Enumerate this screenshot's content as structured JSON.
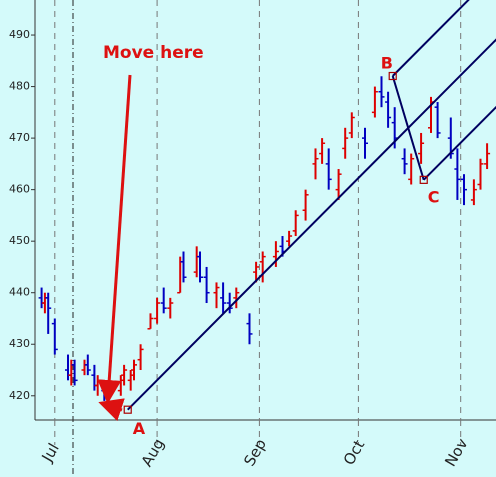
{
  "chart_data": {
    "type": "ohlc",
    "xlim": [
      176,
      315.7
    ],
    "ylim": [
      415.3,
      496.8
    ],
    "xticks": [
      {
        "value": 182,
        "label": "Jul"
      },
      {
        "value": 213,
        "label": "Aug"
      },
      {
        "value": 244,
        "label": "Sep"
      },
      {
        "value": 274,
        "label": "Oct"
      },
      {
        "value": 305,
        "label": "Nov"
      }
    ],
    "yticks": [
      420,
      430,
      440,
      450,
      460,
      470,
      480,
      490
    ],
    "up_color": "#dd0000",
    "down_color": "#0000c0",
    "grid": true,
    "bars": {
      "x": [
        178,
        179,
        180,
        182,
        186,
        187,
        188,
        191,
        192,
        194,
        195,
        197,
        198,
        202,
        203,
        205,
        206,
        208,
        211,
        213,
        215,
        217,
        220,
        221,
        225,
        226,
        228,
        231,
        233,
        235,
        237,
        241,
        243,
        245,
        249,
        251,
        253,
        255,
        258,
        261,
        263,
        265,
        268,
        270,
        272,
        276,
        279,
        281,
        283,
        285,
        288,
        290,
        293,
        296,
        298,
        302,
        304,
        306,
        309,
        311,
        313
      ],
      "open": [
        439,
        438,
        439,
        434,
        425,
        424,
        426,
        425,
        426,
        424,
        422,
        421,
        420,
        421,
        424,
        423,
        425,
        427,
        433,
        435,
        438,
        437,
        440,
        446,
        444,
        447,
        443,
        440,
        439,
        438,
        439,
        434,
        444,
        446,
        447,
        449,
        450,
        452,
        456,
        465,
        467,
        465,
        460,
        468,
        471,
        470,
        475,
        479,
        477,
        473,
        466,
        462,
        467,
        472,
        476,
        470,
        464,
        462,
        458,
        461,
        465
      ],
      "high": [
        441,
        440,
        440,
        435,
        428,
        427,
        427,
        427,
        428,
        426,
        424,
        423,
        422,
        424,
        426,
        425,
        427,
        430,
        436,
        439,
        441,
        439,
        447,
        448,
        449,
        448,
        445,
        442,
        442,
        440,
        441,
        436,
        446,
        448,
        450,
        451,
        452,
        456,
        460,
        468,
        470,
        468,
        464,
        472,
        475,
        472,
        480,
        482,
        479,
        476,
        468,
        467,
        471,
        478,
        477,
        474,
        468,
        463,
        462,
        466,
        469
      ],
      "low": [
        437,
        436,
        432,
        428,
        423,
        422,
        422,
        424,
        424,
        421,
        420,
        419,
        418,
        420,
        422,
        421,
        423,
        425,
        433,
        434,
        436,
        435,
        440,
        442,
        443,
        442,
        438,
        437,
        436,
        436,
        437,
        430,
        442,
        442,
        445,
        447,
        449,
        451,
        454,
        462,
        465,
        460,
        458,
        466,
        470,
        466,
        474,
        476,
        472,
        468,
        463,
        461,
        465,
        471,
        470,
        466,
        458,
        457,
        457,
        460,
        464
      ],
      "close": [
        438,
        439,
        437,
        429,
        424,
        426,
        423,
        426,
        425,
        422,
        423,
        420,
        421,
        423,
        425,
        424,
        426,
        429,
        435,
        438,
        437,
        438,
        446,
        443,
        447,
        443,
        440,
        441,
        438,
        437,
        440,
        432,
        445,
        447,
        448,
        448,
        451,
        455,
        459,
        466,
        469,
        462,
        463,
        470,
        474,
        469,
        479,
        478,
        474,
        470,
        465,
        466,
        469,
        477,
        471,
        467,
        462,
        460,
        460,
        465,
        467
      ]
    },
    "pitchfork": {
      "color": "#000060",
      "points": [
        {
          "label": "A",
          "x": 204.1,
          "y": 417.3
        },
        {
          "label": "B",
          "x": 284.4,
          "y": 482.05
        },
        {
          "label": "C",
          "x": 293.8,
          "y": 461.9
        }
      ]
    },
    "annotation": {
      "text": "Move here",
      "color": "#dd1111"
    }
  }
}
